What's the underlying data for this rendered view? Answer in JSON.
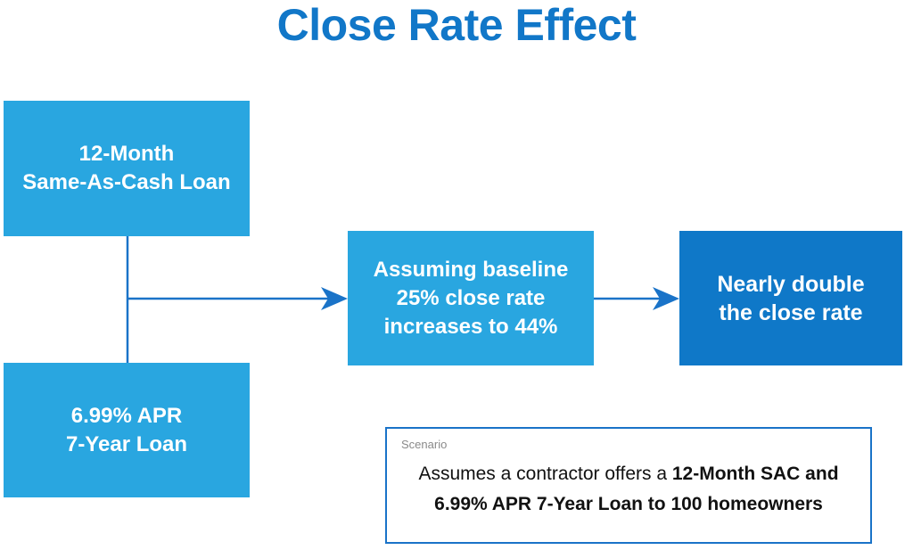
{
  "title": "Close Rate Effect",
  "boxes": {
    "sac": {
      "line1": "12-Month",
      "line2": "Same-As-Cash Loan"
    },
    "apr": {
      "line1": "6.99% APR",
      "line2": "7-Year Loan"
    },
    "baseline": {
      "line1": "Assuming baseline",
      "line2": "25% close rate",
      "line3": "increases to 44%"
    },
    "result": {
      "line1": "Nearly double",
      "line2": "the close rate"
    }
  },
  "scenario": {
    "label": "Scenario",
    "text_plain": "Assumes a contractor offers a ",
    "text_bold_1": "12-Month SAC and",
    "text_bold_2": "6.99% APR 7-Year Loan to 100 homeowners"
  },
  "colors": {
    "title": "#1177c8",
    "box_light": "#29a6e0",
    "box_dark": "#0f78c8",
    "connector": "#1a73c8"
  }
}
